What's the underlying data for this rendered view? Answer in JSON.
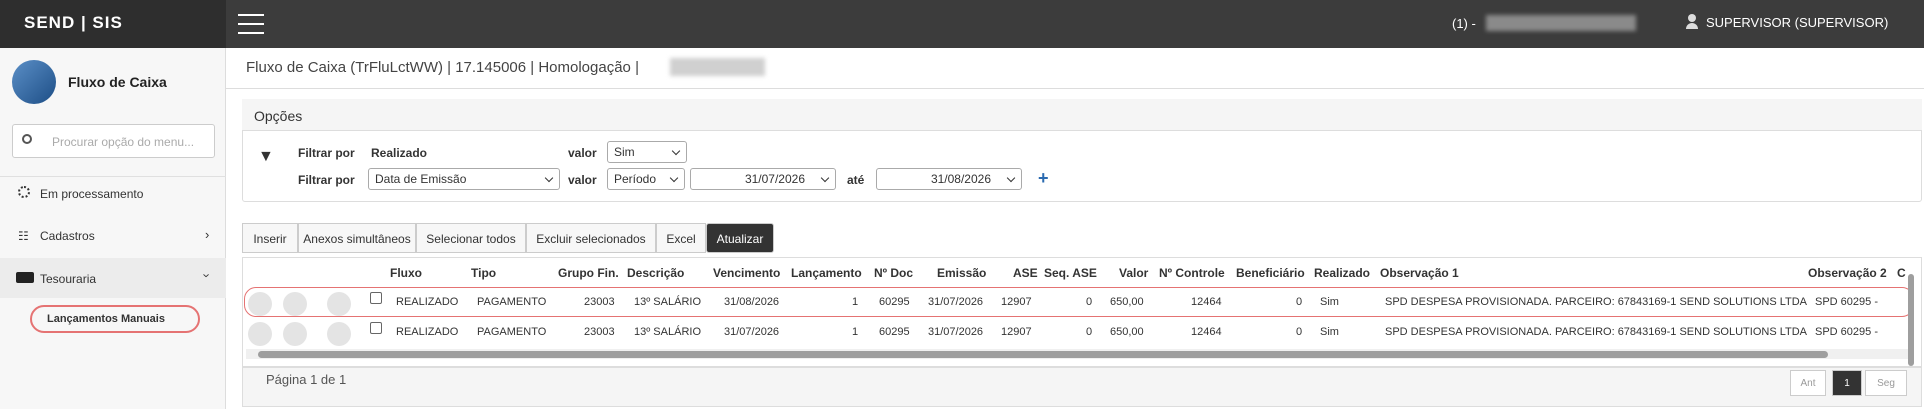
{
  "header": {
    "brand": "SEND | SIS",
    "user_prefix": "(1) -",
    "user": "SUPERVISOR (SUPERVISOR)"
  },
  "sidebar": {
    "module": "Fluxo de Caixa",
    "search_placeholder": "Procurar opção do menu...",
    "menu": [
      "Em processamento",
      "Cadastros",
      "Tesouraria"
    ],
    "submenu": [
      "Lançamentos Manuais"
    ]
  },
  "breadcrumb": "Fluxo de Caixa (TrFluLctWW) | 17.145006 | Homologação |",
  "options": {
    "title": "Opções",
    "filters": [
      {
        "label": "Filtrar por",
        "field": "Realizado",
        "value_label": "valor",
        "value": "Sim"
      },
      {
        "label": "Filtrar por",
        "field": "Data de Emissão",
        "value_label": "valor",
        "value": "Período",
        "from": "31/07/2026",
        "to_label": "até",
        "to": "31/08/2026"
      }
    ]
  },
  "buttons": [
    "Inserir",
    "Anexos simultâneos",
    "Selecionar todos",
    "Excluir selecionados",
    "Excel",
    "Atualizar"
  ],
  "table": {
    "columns": [
      "Fluxo",
      "Tipo",
      "Grupo Fin.",
      "Descrição",
      "Vencimento",
      "Lançamento",
      "Nº Doc",
      "Emissão",
      "ASE",
      "Seq. ASE",
      "Valor",
      "Nº Controle",
      "Beneficiário",
      "Realizado",
      "Observação 1",
      "Observação 2",
      "C"
    ],
    "rows": [
      [
        "REALIZADO",
        "PAGAMENTO",
        "23003",
        "13º SALÁRIO",
        "31/08/2026",
        "1",
        "60295",
        "31/07/2026",
        "12907",
        "0",
        "650,00",
        "12464",
        "0",
        "Sim",
        "SPD DESPESA PROVISIONADA. PARCEIRO: 67843169-1 SEND SOLUTIONS LTDA",
        "SPD 60295 -"
      ],
      [
        "REALIZADO",
        "PAGAMENTO",
        "23003",
        "13º SALÁRIO",
        "31/07/2026",
        "1",
        "60295",
        "31/07/2026",
        "12907",
        "0",
        "650,00",
        "12464",
        "0",
        "Sim",
        "SPD DESPESA PROVISIONADA. PARCEIRO: 67843169-1 SEND SOLUTIONS LTDA",
        "SPD 60295 -"
      ]
    ]
  },
  "footer": {
    "page_info": "Página 1 de 1",
    "pagination": [
      "Ant",
      "1",
      "Seg"
    ]
  }
}
